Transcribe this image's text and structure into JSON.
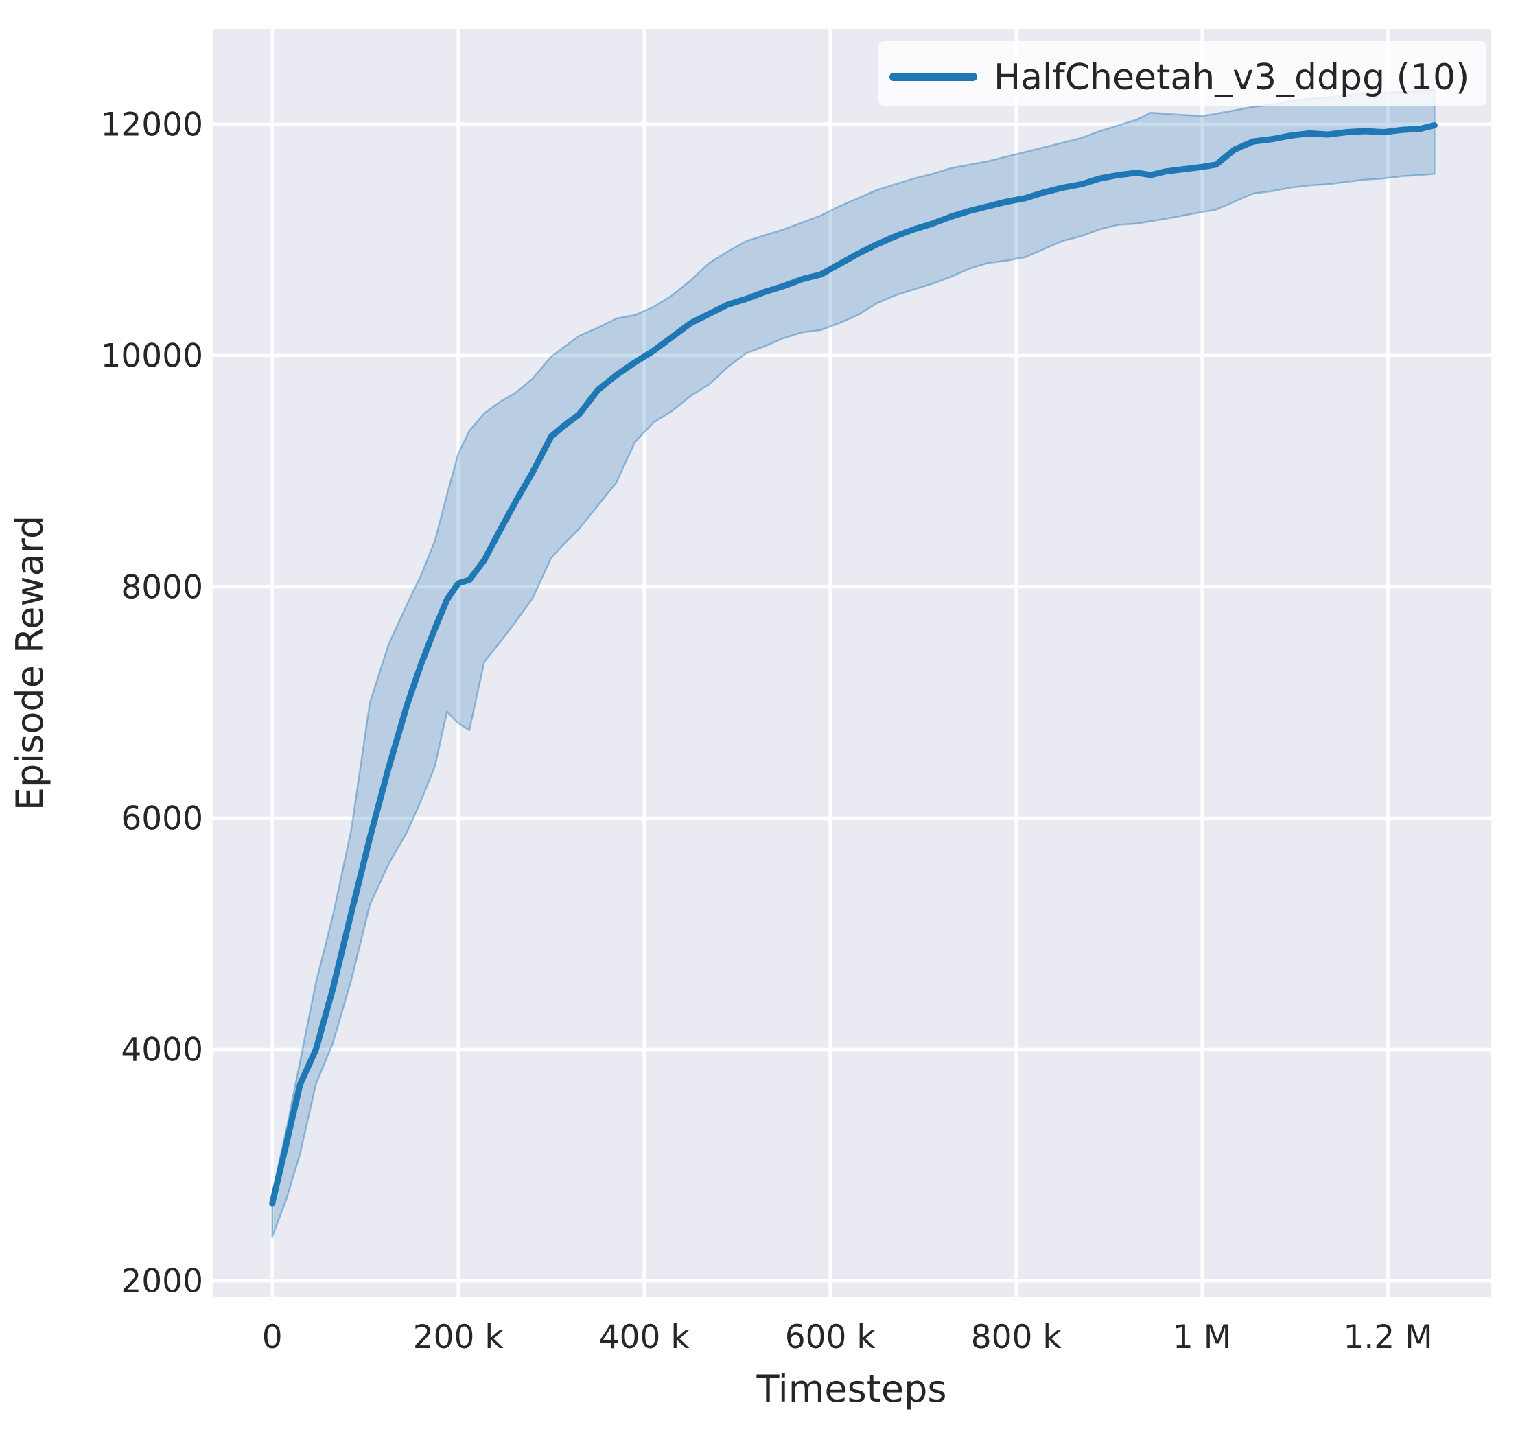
{
  "chart_data": {
    "type": "line",
    "title": "",
    "xlabel": "Timesteps",
    "ylabel": "Episode Reward",
    "grid": true,
    "legend": {
      "position": "upper right",
      "entries": [
        {
          "label": "HalfCheetah_v3_ddpg (10)",
          "color": "#1f77b4"
        }
      ]
    },
    "colors": {
      "line": "#1f77b4",
      "band_fill": "rgba(31,119,180,0.24)",
      "band_edge": "rgba(31,119,180,0.42)",
      "plot_background": "#eaeaf2",
      "gridline": "#ffffff",
      "figure_background": "#ffffff",
      "text": "#262626"
    },
    "xlim": [
      -64000,
      1311000
    ],
    "ylim": [
      1858,
      12824
    ],
    "x_ticks": {
      "values": [
        0,
        200000,
        400000,
        600000,
        800000,
        1000000,
        1200000
      ],
      "labels": [
        "0",
        "200 k",
        "400 k",
        "600 k",
        "800 k",
        "1 M",
        "1.2 M"
      ]
    },
    "y_ticks": {
      "values": [
        2000,
        4000,
        6000,
        8000,
        10000,
        12000
      ],
      "labels": [
        "2000",
        "4000",
        "6000",
        "8000",
        "10000",
        "12000"
      ]
    },
    "series": [
      {
        "name": "HalfCheetah_v3_ddpg (10)",
        "color": "#1f77b4",
        "x": [
          0,
          15000,
          30000,
          47000,
          65000,
          85000,
          105000,
          125000,
          145000,
          160000,
          175000,
          188000,
          200000,
          212000,
          228000,
          245000,
          262000,
          280000,
          300000,
          315000,
          330000,
          350000,
          370000,
          390000,
          410000,
          430000,
          450000,
          470000,
          490000,
          510000,
          530000,
          550000,
          570000,
          590000,
          610000,
          630000,
          650000,
          670000,
          690000,
          710000,
          730000,
          750000,
          770000,
          790000,
          810000,
          830000,
          850000,
          870000,
          890000,
          910000,
          930000,
          945000,
          960000,
          980000,
          1000000,
          1015000,
          1035000,
          1055000,
          1075000,
          1095000,
          1115000,
          1135000,
          1155000,
          1175000,
          1195000,
          1215000,
          1235000,
          1250000
        ],
        "y": [
          2670,
          3180,
          3700,
          4000,
          4520,
          5180,
          5830,
          6430,
          6980,
          7330,
          7640,
          7890,
          8030,
          8060,
          8230,
          8490,
          8740,
          8990,
          9300,
          9400,
          9490,
          9700,
          9830,
          9940,
          10040,
          10160,
          10280,
          10360,
          10440,
          10490,
          10550,
          10600,
          10660,
          10700,
          10790,
          10880,
          10960,
          11030,
          11090,
          11140,
          11200,
          11250,
          11290,
          11330,
          11360,
          11410,
          11450,
          11480,
          11530,
          11560,
          11580,
          11560,
          11590,
          11610,
          11630,
          11650,
          11780,
          11850,
          11870,
          11900,
          11920,
          11910,
          11930,
          11940,
          11930,
          11950,
          11960,
          11990
        ],
        "band_lower": [
          2380,
          2700,
          3100,
          3700,
          4050,
          4600,
          5250,
          5600,
          5880,
          6150,
          6450,
          6920,
          6820,
          6760,
          7350,
          7520,
          7700,
          7900,
          8250,
          8380,
          8500,
          8700,
          8900,
          9250,
          9420,
          9520,
          9650,
          9750,
          9900,
          10020,
          10080,
          10150,
          10200,
          10220,
          10280,
          10350,
          10450,
          10520,
          10570,
          10620,
          10680,
          10750,
          10800,
          10820,
          10850,
          10920,
          10990,
          11030,
          11090,
          11130,
          11140,
          11160,
          11180,
          11210,
          11240,
          11260,
          11330,
          11400,
          11420,
          11450,
          11470,
          11480,
          11500,
          11520,
          11530,
          11550,
          11560,
          11570
        ],
        "band_upper": [
          2750,
          3300,
          3900,
          4580,
          5150,
          5900,
          7000,
          7500,
          7850,
          8100,
          8400,
          8800,
          9150,
          9350,
          9500,
          9600,
          9680,
          9800,
          9990,
          10080,
          10170,
          10240,
          10320,
          10350,
          10420,
          10520,
          10650,
          10800,
          10900,
          10990,
          11040,
          11090,
          11150,
          11210,
          11290,
          11360,
          11430,
          11480,
          11530,
          11570,
          11620,
          11650,
          11680,
          11720,
          11760,
          11800,
          11840,
          11880,
          11940,
          11990,
          12040,
          12100,
          12090,
          12080,
          12070,
          12090,
          12120,
          12150,
          12170,
          12200,
          12220,
          12230,
          12250,
          12260,
          12270,
          12280,
          12290,
          12300
        ]
      }
    ]
  }
}
